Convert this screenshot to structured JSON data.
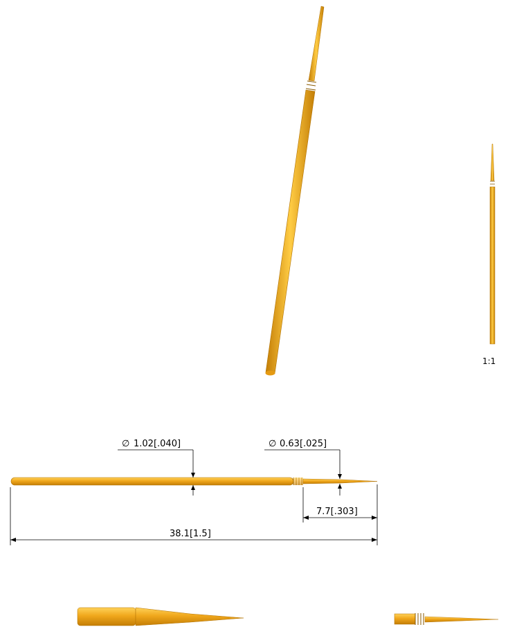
{
  "colors": {
    "part_fill": "#f0a71c",
    "part_dark": "#c47e06",
    "part_light": "#ffd25a",
    "line": "#000000"
  },
  "scale_label": "1:1",
  "dimensions": {
    "body_diameter": {
      "symbol": "∅",
      "value": "1.02[.040]"
    },
    "tip_diameter": {
      "symbol": "∅",
      "value": "0.63[.025]"
    },
    "tip_length": "7.7[.303]",
    "overall_length": "38.1[1.5]"
  }
}
